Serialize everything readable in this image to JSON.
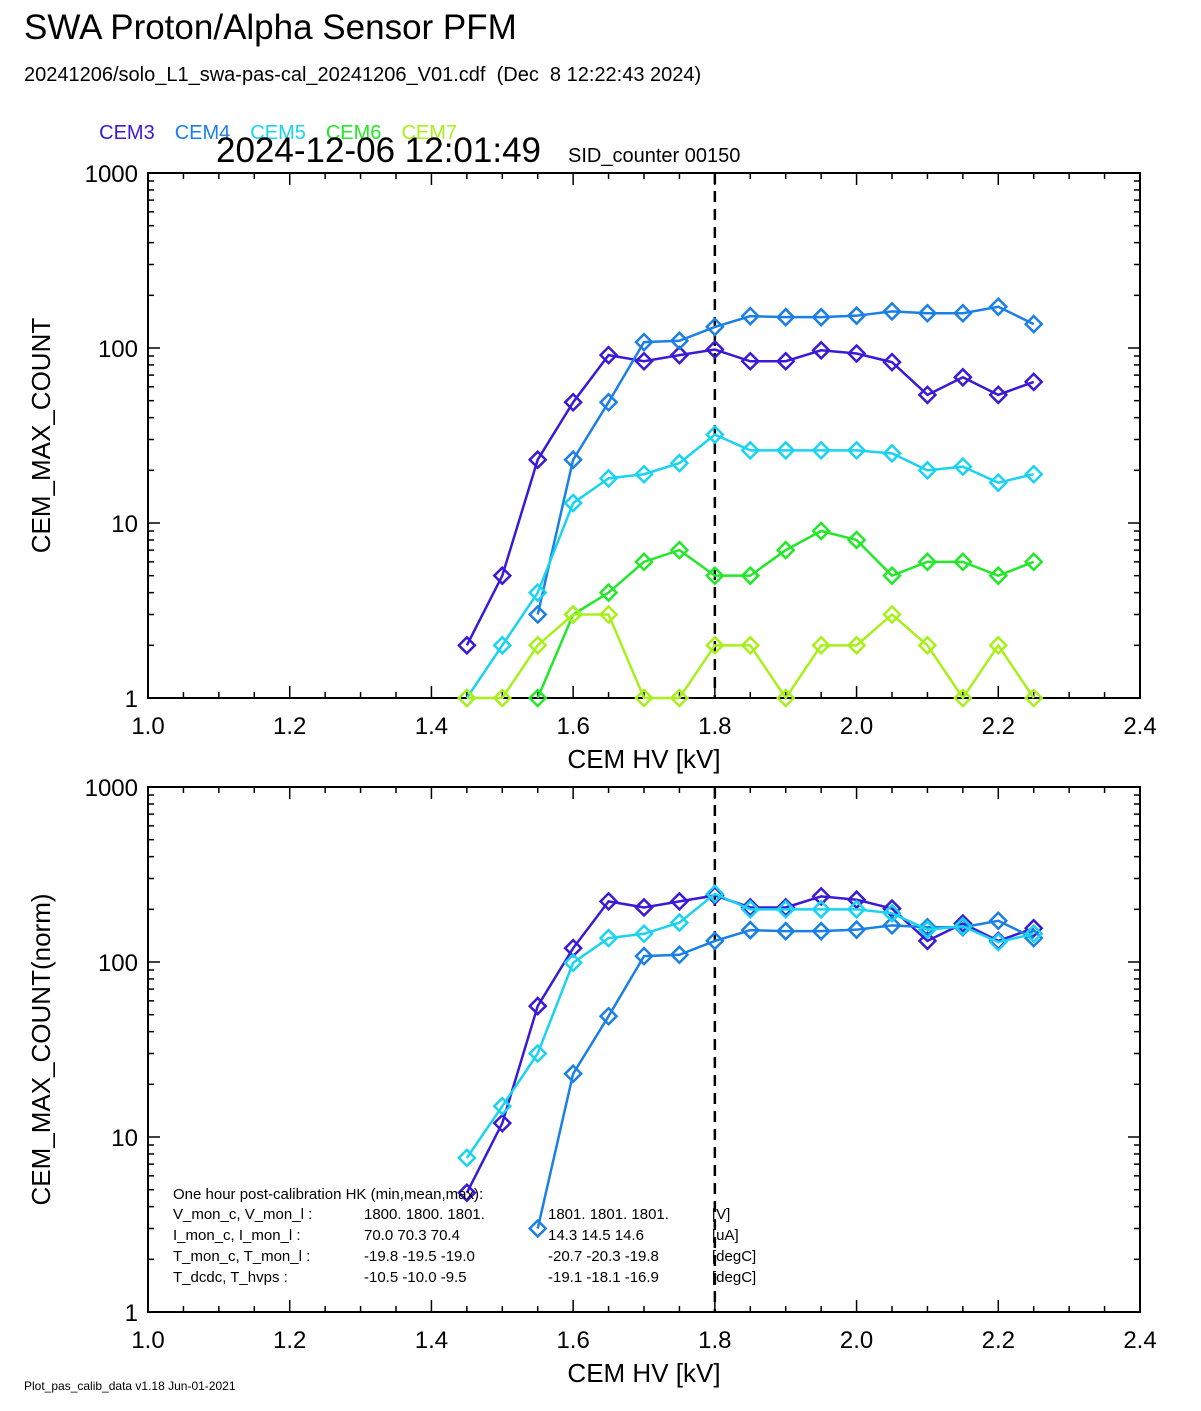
{
  "header": {
    "title": "SWA Proton/Alpha Sensor PFM",
    "subtitle": "20241206/solo_L1_swa-pas-cal_20241206_V01.cdf  (Dec  8 12:22:43 2024)",
    "timestamp": "2024-12-06 12:01:49",
    "sid": "SID_counter 00150"
  },
  "legend": [
    {
      "label": "CEM3",
      "color": "#3a1ad6"
    },
    {
      "label": "CEM4",
      "color": "#1a7fe6"
    },
    {
      "label": "CEM5",
      "color": "#19d3f0"
    },
    {
      "label": "CEM6",
      "color": "#22e829"
    },
    {
      "label": "CEM7",
      "color": "#a8f01a"
    }
  ],
  "footer": "Plot_pas_calib_data v1.18 Jun-01-2021",
  "chart_data": [
    {
      "type": "line",
      "xlabel": "CEM HV [kV]",
      "ylabel": "CEM_MAX_COUNT",
      "xlim": [
        1.0,
        2.4
      ],
      "ylim": [
        1,
        1000
      ],
      "yscale": "log",
      "x_ticks": [
        "1.0",
        "1.2",
        "1.4",
        "1.6",
        "1.8",
        "2.0",
        "2.2",
        "2.4"
      ],
      "y_ticks": [
        "1",
        "10",
        "100",
        "1000"
      ],
      "marker": "diamond",
      "vline_x": 1.8,
      "series": [
        {
          "name": "CEM3",
          "color": "#3a1ad6",
          "points": [
            [
              1.45,
              2
            ],
            [
              1.5,
              5
            ],
            [
              1.55,
              23
            ],
            [
              1.6,
              49
            ],
            [
              1.65,
              91
            ],
            [
              1.7,
              84
            ],
            [
              1.75,
              91
            ],
            [
              1.8,
              98
            ],
            [
              1.85,
              84
            ],
            [
              1.9,
              84
            ],
            [
              1.95,
              97
            ],
            [
              2.0,
              93
            ],
            [
              2.05,
              83
            ],
            [
              2.1,
              54
            ],
            [
              2.15,
              68
            ],
            [
              2.2,
              54
            ],
            [
              2.25,
              64
            ]
          ]
        },
        {
          "name": "CEM4",
          "color": "#1a7fe6",
          "points": [
            [
              1.55,
              3
            ],
            [
              1.6,
              23
            ],
            [
              1.65,
              49
            ],
            [
              1.7,
              108
            ],
            [
              1.75,
              110
            ],
            [
              1.8,
              132
            ],
            [
              1.85,
              152
            ],
            [
              1.9,
              150
            ],
            [
              1.95,
              150
            ],
            [
              2.0,
              153
            ],
            [
              2.05,
              162
            ],
            [
              2.1,
              158
            ],
            [
              2.15,
              158
            ],
            [
              2.2,
              172
            ],
            [
              2.25,
              137
            ]
          ]
        },
        {
          "name": "CEM5",
          "color": "#19d3f0",
          "points": [
            [
              1.45,
              1
            ],
            [
              1.5,
              2
            ],
            [
              1.55,
              4
            ],
            [
              1.6,
              13
            ],
            [
              1.65,
              18
            ],
            [
              1.7,
              19
            ],
            [
              1.75,
              22
            ],
            [
              1.8,
              32
            ],
            [
              1.85,
              26
            ],
            [
              1.9,
              26
            ],
            [
              1.95,
              26
            ],
            [
              2.0,
              26
            ],
            [
              2.05,
              25
            ],
            [
              2.1,
              20
            ],
            [
              2.15,
              21
            ],
            [
              2.2,
              17
            ],
            [
              2.25,
              19
            ]
          ]
        },
        {
          "name": "CEM6",
          "color": "#22e829",
          "points": [
            [
              1.55,
              1
            ],
            [
              1.6,
              3
            ],
            [
              1.65,
              4
            ],
            [
              1.7,
              6
            ],
            [
              1.75,
              7
            ],
            [
              1.8,
              5
            ],
            [
              1.85,
              5
            ],
            [
              1.9,
              7
            ],
            [
              1.95,
              9
            ],
            [
              2.0,
              8
            ],
            [
              2.05,
              5
            ],
            [
              2.1,
              6
            ],
            [
              2.15,
              6
            ],
            [
              2.2,
              5
            ],
            [
              2.25,
              6
            ]
          ]
        },
        {
          "name": "CEM7",
          "color": "#a8f01a",
          "points": [
            [
              1.45,
              1
            ],
            [
              1.5,
              1
            ],
            [
              1.55,
              2
            ],
            [
              1.6,
              3
            ],
            [
              1.65,
              3
            ],
            [
              1.7,
              1
            ],
            [
              1.75,
              1
            ],
            [
              1.8,
              2
            ],
            [
              1.85,
              2
            ],
            [
              1.9,
              1
            ],
            [
              1.95,
              2
            ],
            [
              2.0,
              2
            ],
            [
              2.05,
              3
            ],
            [
              2.1,
              2
            ],
            [
              2.15,
              1
            ],
            [
              2.2,
              2
            ],
            [
              2.25,
              1
            ]
          ]
        }
      ]
    },
    {
      "type": "line",
      "xlabel": "CEM HV [kV]",
      "ylabel": "CEM_MAX_COUNT(norm)",
      "xlim": [
        1.0,
        2.4
      ],
      "ylim": [
        1,
        1000
      ],
      "yscale": "log",
      "x_ticks": [
        "1.0",
        "1.2",
        "1.4",
        "1.6",
        "1.8",
        "2.0",
        "2.2",
        "2.4"
      ],
      "y_ticks": [
        "1",
        "10",
        "100",
        "1000"
      ],
      "marker": "diamond",
      "vline_x": 1.8,
      "series": [
        {
          "name": "CEM3",
          "color": "#3a1ad6",
          "points": [
            [
              1.45,
              4.8
            ],
            [
              1.5,
              12
            ],
            [
              1.55,
              56
            ],
            [
              1.6,
              120
            ],
            [
              1.65,
              222
            ],
            [
              1.7,
              205
            ],
            [
              1.75,
              222
            ],
            [
              1.8,
              240
            ],
            [
              1.85,
              205
            ],
            [
              1.9,
              205
            ],
            [
              1.95,
              237
            ],
            [
              2.0,
              227
            ],
            [
              2.05,
              202
            ],
            [
              2.1,
              132
            ],
            [
              2.15,
              166
            ],
            [
              2.2,
              132
            ],
            [
              2.25,
              156
            ]
          ]
        },
        {
          "name": "CEM4",
          "color": "#1a7fe6",
          "points": [
            [
              1.55,
              3
            ],
            [
              1.6,
              23
            ],
            [
              1.65,
              49
            ],
            [
              1.7,
              108
            ],
            [
              1.75,
              110
            ],
            [
              1.8,
              132
            ],
            [
              1.85,
              152
            ],
            [
              1.9,
              150
            ],
            [
              1.95,
              150
            ],
            [
              2.0,
              153
            ],
            [
              2.05,
              162
            ],
            [
              2.1,
              158
            ],
            [
              2.15,
              158
            ],
            [
              2.2,
              172
            ],
            [
              2.25,
              137
            ]
          ]
        },
        {
          "name": "CEM5",
          "color": "#19d3f0",
          "points": [
            [
              1.45,
              7.6
            ],
            [
              1.5,
              15
            ],
            [
              1.55,
              30
            ],
            [
              1.6,
              99
            ],
            [
              1.65,
              137
            ],
            [
              1.7,
              145
            ],
            [
              1.75,
              168
            ],
            [
              1.8,
              245
            ],
            [
              1.85,
              200
            ],
            [
              1.9,
              200
            ],
            [
              1.95,
              200
            ],
            [
              2.0,
              200
            ],
            [
              2.05,
              190
            ],
            [
              2.1,
              153
            ],
            [
              2.15,
              160
            ],
            [
              2.2,
              130
            ],
            [
              2.25,
              145
            ]
          ]
        }
      ],
      "annotation": {
        "heading": "One hour post-calibration HK (min,mean,max):",
        "rows": [
          {
            "label": "V_mon_c, V_mon_l :",
            "left": "1800.  1800.  1801.",
            "right": "1801.  1801.  1801.",
            "unit": "[V]"
          },
          {
            "label": "I_mon_c,  I_mon_l :",
            "left": "70.0   70.3   70.4",
            "right": "14.3   14.5   14.6",
            "unit": "[uA]"
          },
          {
            "label": "T_mon_c, T_mon_l :",
            "left": "-19.8  -19.5  -19.0",
            "right": "-20.7  -20.3  -19.8",
            "unit": "[degC]"
          },
          {
            "label": "T_dcdc,    T_hvps :",
            "left": "-10.5  -10.0   -9.5",
            "right": "-19.1  -18.1  -16.9",
            "unit": "[degC]"
          }
        ]
      }
    }
  ]
}
